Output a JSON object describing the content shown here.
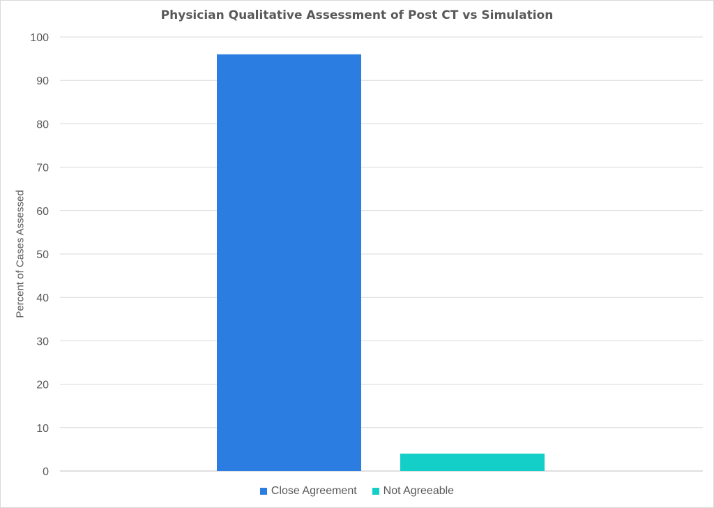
{
  "chart_data": {
    "type": "bar",
    "title": "Physician Qualitative Assessment of Post CT vs Simulation",
    "ylabel": "Percent of Cases Assessed",
    "xlabel": "",
    "ylim": [
      0,
      100
    ],
    "yticks": [
      0,
      10,
      20,
      30,
      40,
      50,
      60,
      70,
      80,
      90,
      100
    ],
    "grid": true,
    "legend_position": "bottom",
    "series": [
      {
        "name": "Close Agreement",
        "values": [
          96
        ],
        "color": "#2b7de1"
      },
      {
        "name": "Not Agreeable",
        "values": [
          4
        ],
        "color": "#14cfc7"
      }
    ]
  }
}
